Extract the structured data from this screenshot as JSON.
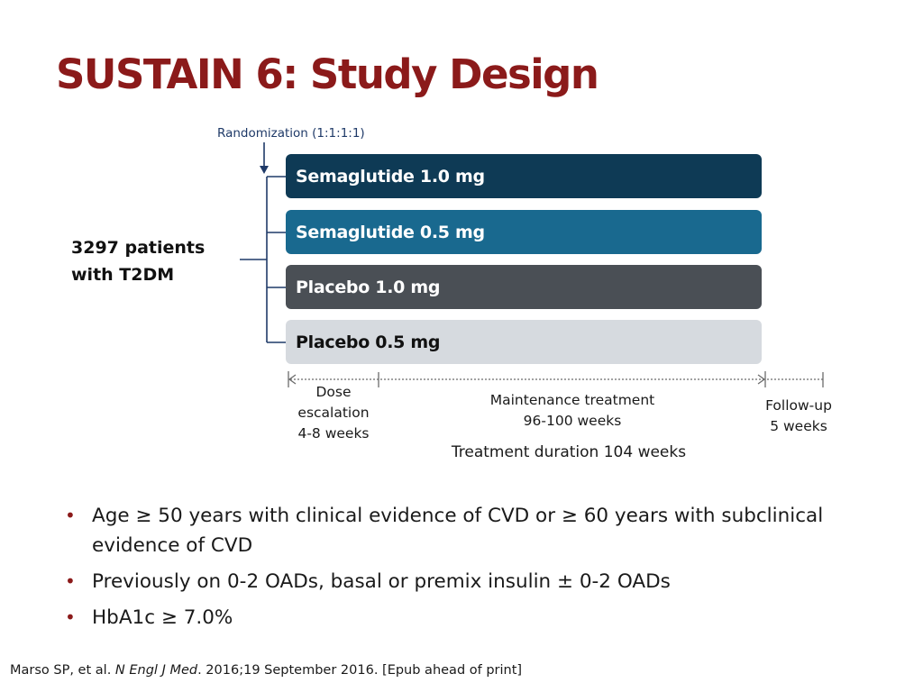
{
  "slide": {
    "title": "SUSTAIN 6: Study Design"
  },
  "diagram": {
    "randomization_label": "Randomization (1:1:1:1)",
    "population": {
      "line1": "3297 patients",
      "line2": "with T2DM"
    },
    "arms": [
      {
        "label": "Semaglutide 1.0 mg",
        "color": "#0e3a55"
      },
      {
        "label": "Semaglutide 0.5 mg",
        "color": "#19698f"
      },
      {
        "label": "Placebo 1.0 mg",
        "color": "#4a4f55"
      },
      {
        "label": "Placebo 0.5 mg",
        "color": "#d6dadf"
      }
    ],
    "phases": {
      "dose_escalation": [
        "Dose",
        "escalation",
        "4-8 weeks"
      ],
      "maintenance": [
        "Maintenance treatment",
        "96-100 weeks"
      ],
      "follow_up": [
        "Follow-up",
        "5 weeks"
      ],
      "total": "Treatment duration 104 weeks"
    }
  },
  "criteria": [
    "Age ≥ 50 years with clinical evidence of CVD or ≥ 60 years with subclinical evidence of CVD",
    "Previously on 0-2 OADs, basal or premix insulin ± 0-2 OADs",
    "HbA1c ≥ 7.0%"
  ],
  "citation": {
    "authors": "Marso SP, et al.",
    "journal": "N Engl J Med",
    "details": ". 2016;19 September 2016. [Epub ahead of print]"
  },
  "colors": {
    "title": "#8b1a1a",
    "bullet": "#8b1a1a",
    "randomization": "#1f3a68"
  }
}
